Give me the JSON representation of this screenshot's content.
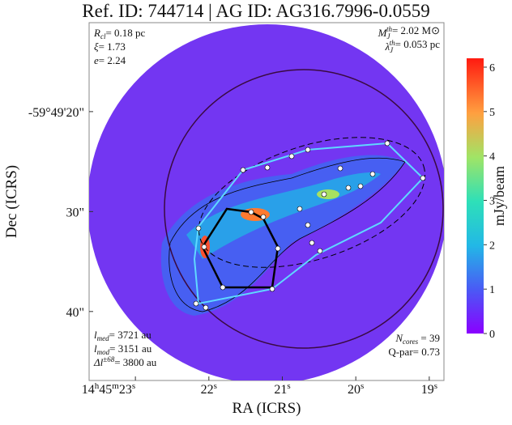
{
  "chart_data": {
    "type": "image",
    "title": "Ref. ID: 744714 | AG ID: AG316.7996-0.0559",
    "x_label": "RA (ICRS)",
    "y_label": "Dec (ICRS)",
    "colorbar_label": "mJy/beam",
    "xlim": [
      23.63,
      18.8
    ],
    "xticks": [
      {
        "value": 23,
        "label": "14h45m23s"
      },
      {
        "value": 22,
        "label": "22s"
      },
      {
        "value": 21,
        "label": "21s"
      },
      {
        "value": 20,
        "label": "20s"
      },
      {
        "value": 19,
        "label": "19s"
      }
    ],
    "ylim": [
      46.9,
      11.1
    ],
    "yticks": [
      {
        "value": 20,
        "label": "-59°49'20\""
      },
      {
        "value": 30,
        "label": "30\""
      },
      {
        "value": 40,
        "label": "40\""
      }
    ],
    "clim": [
      0,
      6.2
    ],
    "cticks": [
      0,
      1,
      2,
      3,
      4,
      5,
      6
    ],
    "annotations_top_left": [
      {
        "symbol": "R",
        "sub": "cl",
        "text": "= 0.18 pc"
      },
      {
        "symbol": "ξ",
        "text": "= 1.73"
      },
      {
        "symbol": "e",
        "text": "= 2.24"
      }
    ],
    "annotations_top_right": [
      {
        "symbol": "M",
        "sub": "J",
        "sup": "th",
        "text": "= 2.02 M⊙"
      },
      {
        "symbol": "λ",
        "sub": "J",
        "sup": "th",
        "text": "= 0.053 pc"
      }
    ],
    "annotations_bottom_left": [
      {
        "symbol": "l",
        "sub": "med",
        "text": "= 3721 au"
      },
      {
        "symbol": "l",
        "sub": "mod",
        "text": "= 3151 au"
      },
      {
        "symbol": "Δl",
        "sup": "±68",
        "text": "= 3800 au"
      }
    ],
    "annotations_bottom_right": [
      {
        "symbol": "N",
        "sub": "cores",
        "text": " = 39"
      },
      {
        "text": "Q-par= 0.73"
      }
    ]
  }
}
